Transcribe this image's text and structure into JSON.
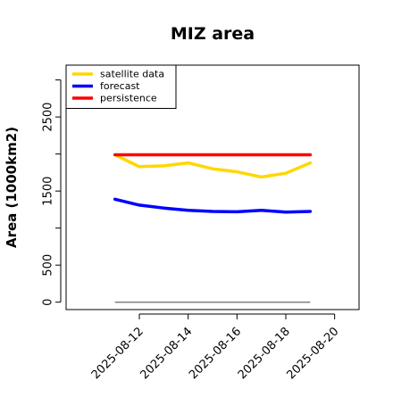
{
  "chart_data": {
    "type": "line",
    "title": "MIZ area",
    "xlabel": "",
    "ylabel": "Area (1000km2)",
    "x": [
      "2025-08-11",
      "2025-08-12",
      "2025-08-13",
      "2025-08-14",
      "2025-08-15",
      "2025-08-16",
      "2025-08-17",
      "2025-08-18",
      "2025-08-19"
    ],
    "series": [
      {
        "name": "satellite data",
        "color": "#FFD700",
        "values": [
          1990,
          1830,
          1840,
          1880,
          1800,
          1760,
          1690,
          1740,
          1880
        ]
      },
      {
        "name": "forecast",
        "color": "#0000FF",
        "values": [
          1390,
          1310,
          1270,
          1240,
          1225,
          1220,
          1240,
          1215,
          1225
        ]
      },
      {
        "name": "persistence",
        "color": "#FF0000",
        "values": [
          1990,
          1990,
          1990,
          1990,
          1990,
          1990,
          1990,
          1990,
          1990
        ]
      }
    ],
    "reference_line": {
      "color": "#808080",
      "y": 0,
      "x_range": [
        "2025-08-11",
        "2025-08-19"
      ]
    },
    "ylim": [
      -100,
      3200
    ],
    "xlim": [
      "2025-08-09",
      "2025-08-21"
    ],
    "yticks": [
      0,
      500,
      1500,
      2500
    ],
    "yticks_minor": [
      1000,
      2000,
      3000
    ],
    "xticks": [
      "2025-08-12",
      "2025-08-14",
      "2025-08-16",
      "2025-08-18",
      "2025-08-20"
    ],
    "highlight_tick": {
      "label": "2025-08-12",
      "color": "#228B22"
    },
    "grid": false,
    "legend": "top-left"
  }
}
